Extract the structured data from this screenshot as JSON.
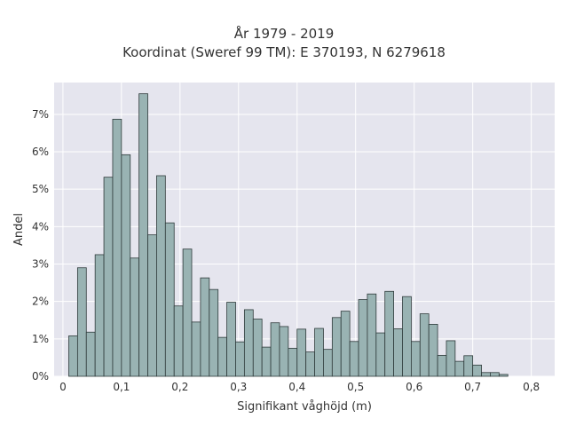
{
  "chart_data": {
    "type": "bar",
    "title": "År 1979 - 2019",
    "subtitle": "Koordinat (Sweref 99 TM): E 370193, N 6279618",
    "xlabel": "Signifikant våghöjd (m)",
    "ylabel": "Andel",
    "xlim": [
      -0.015,
      0.84
    ],
    "ylim": [
      0,
      7.85
    ],
    "bin_width": 0.015,
    "bin_starts": [
      0.01,
      0.025,
      0.04,
      0.055,
      0.07,
      0.085,
      0.1,
      0.115,
      0.13,
      0.145,
      0.16,
      0.175,
      0.19,
      0.205,
      0.22,
      0.235,
      0.25,
      0.265,
      0.28,
      0.295,
      0.31,
      0.325,
      0.34,
      0.355,
      0.37,
      0.385,
      0.4,
      0.415,
      0.43,
      0.445,
      0.46,
      0.475,
      0.49,
      0.505,
      0.52,
      0.535,
      0.55,
      0.565,
      0.58,
      0.595,
      0.61,
      0.625,
      0.64,
      0.655,
      0.67,
      0.685,
      0.7,
      0.715,
      0.73,
      0.745,
      0.76,
      0.775,
      0.79
    ],
    "values": [
      1.08,
      2.9,
      1.18,
      3.25,
      5.32,
      6.87,
      5.92,
      3.16,
      7.55,
      3.78,
      5.36,
      4.1,
      1.88,
      3.4,
      1.45,
      2.63,
      2.32,
      1.04,
      1.98,
      0.92,
      1.78,
      1.53,
      0.78,
      1.43,
      1.33,
      0.75,
      1.26,
      0.65,
      1.28,
      0.72,
      1.57,
      1.74,
      0.93,
      2.05,
      2.2,
      1.16,
      2.27,
      1.27,
      2.13,
      0.93,
      1.67,
      1.39,
      0.56,
      0.95,
      0.4,
      0.55,
      0.3,
      0.1,
      0.1,
      0.05,
      0.0,
      0.0,
      0.0
    ],
    "x_ticks": [
      0,
      0.1,
      0.2,
      0.3,
      0.4,
      0.5,
      0.6,
      0.7,
      0.8
    ],
    "x_tick_labels": [
      "0",
      "0,1",
      "0,2",
      "0,3",
      "0,4",
      "0,5",
      "0,6",
      "0,7",
      "0,8"
    ],
    "y_ticks": [
      0,
      1,
      2,
      3,
      4,
      5,
      6,
      7
    ],
    "y_tick_labels": [
      "0%",
      "1%",
      "2%",
      "3%",
      "4%",
      "5%",
      "6%",
      "7%"
    ],
    "grid": true,
    "legend": "none",
    "colors": {
      "bar_fill": "#99b3b3",
      "bar_stroke": "#2f3b3b",
      "plot_bg": "#e5e5ee",
      "grid": "#ffffff"
    }
  }
}
